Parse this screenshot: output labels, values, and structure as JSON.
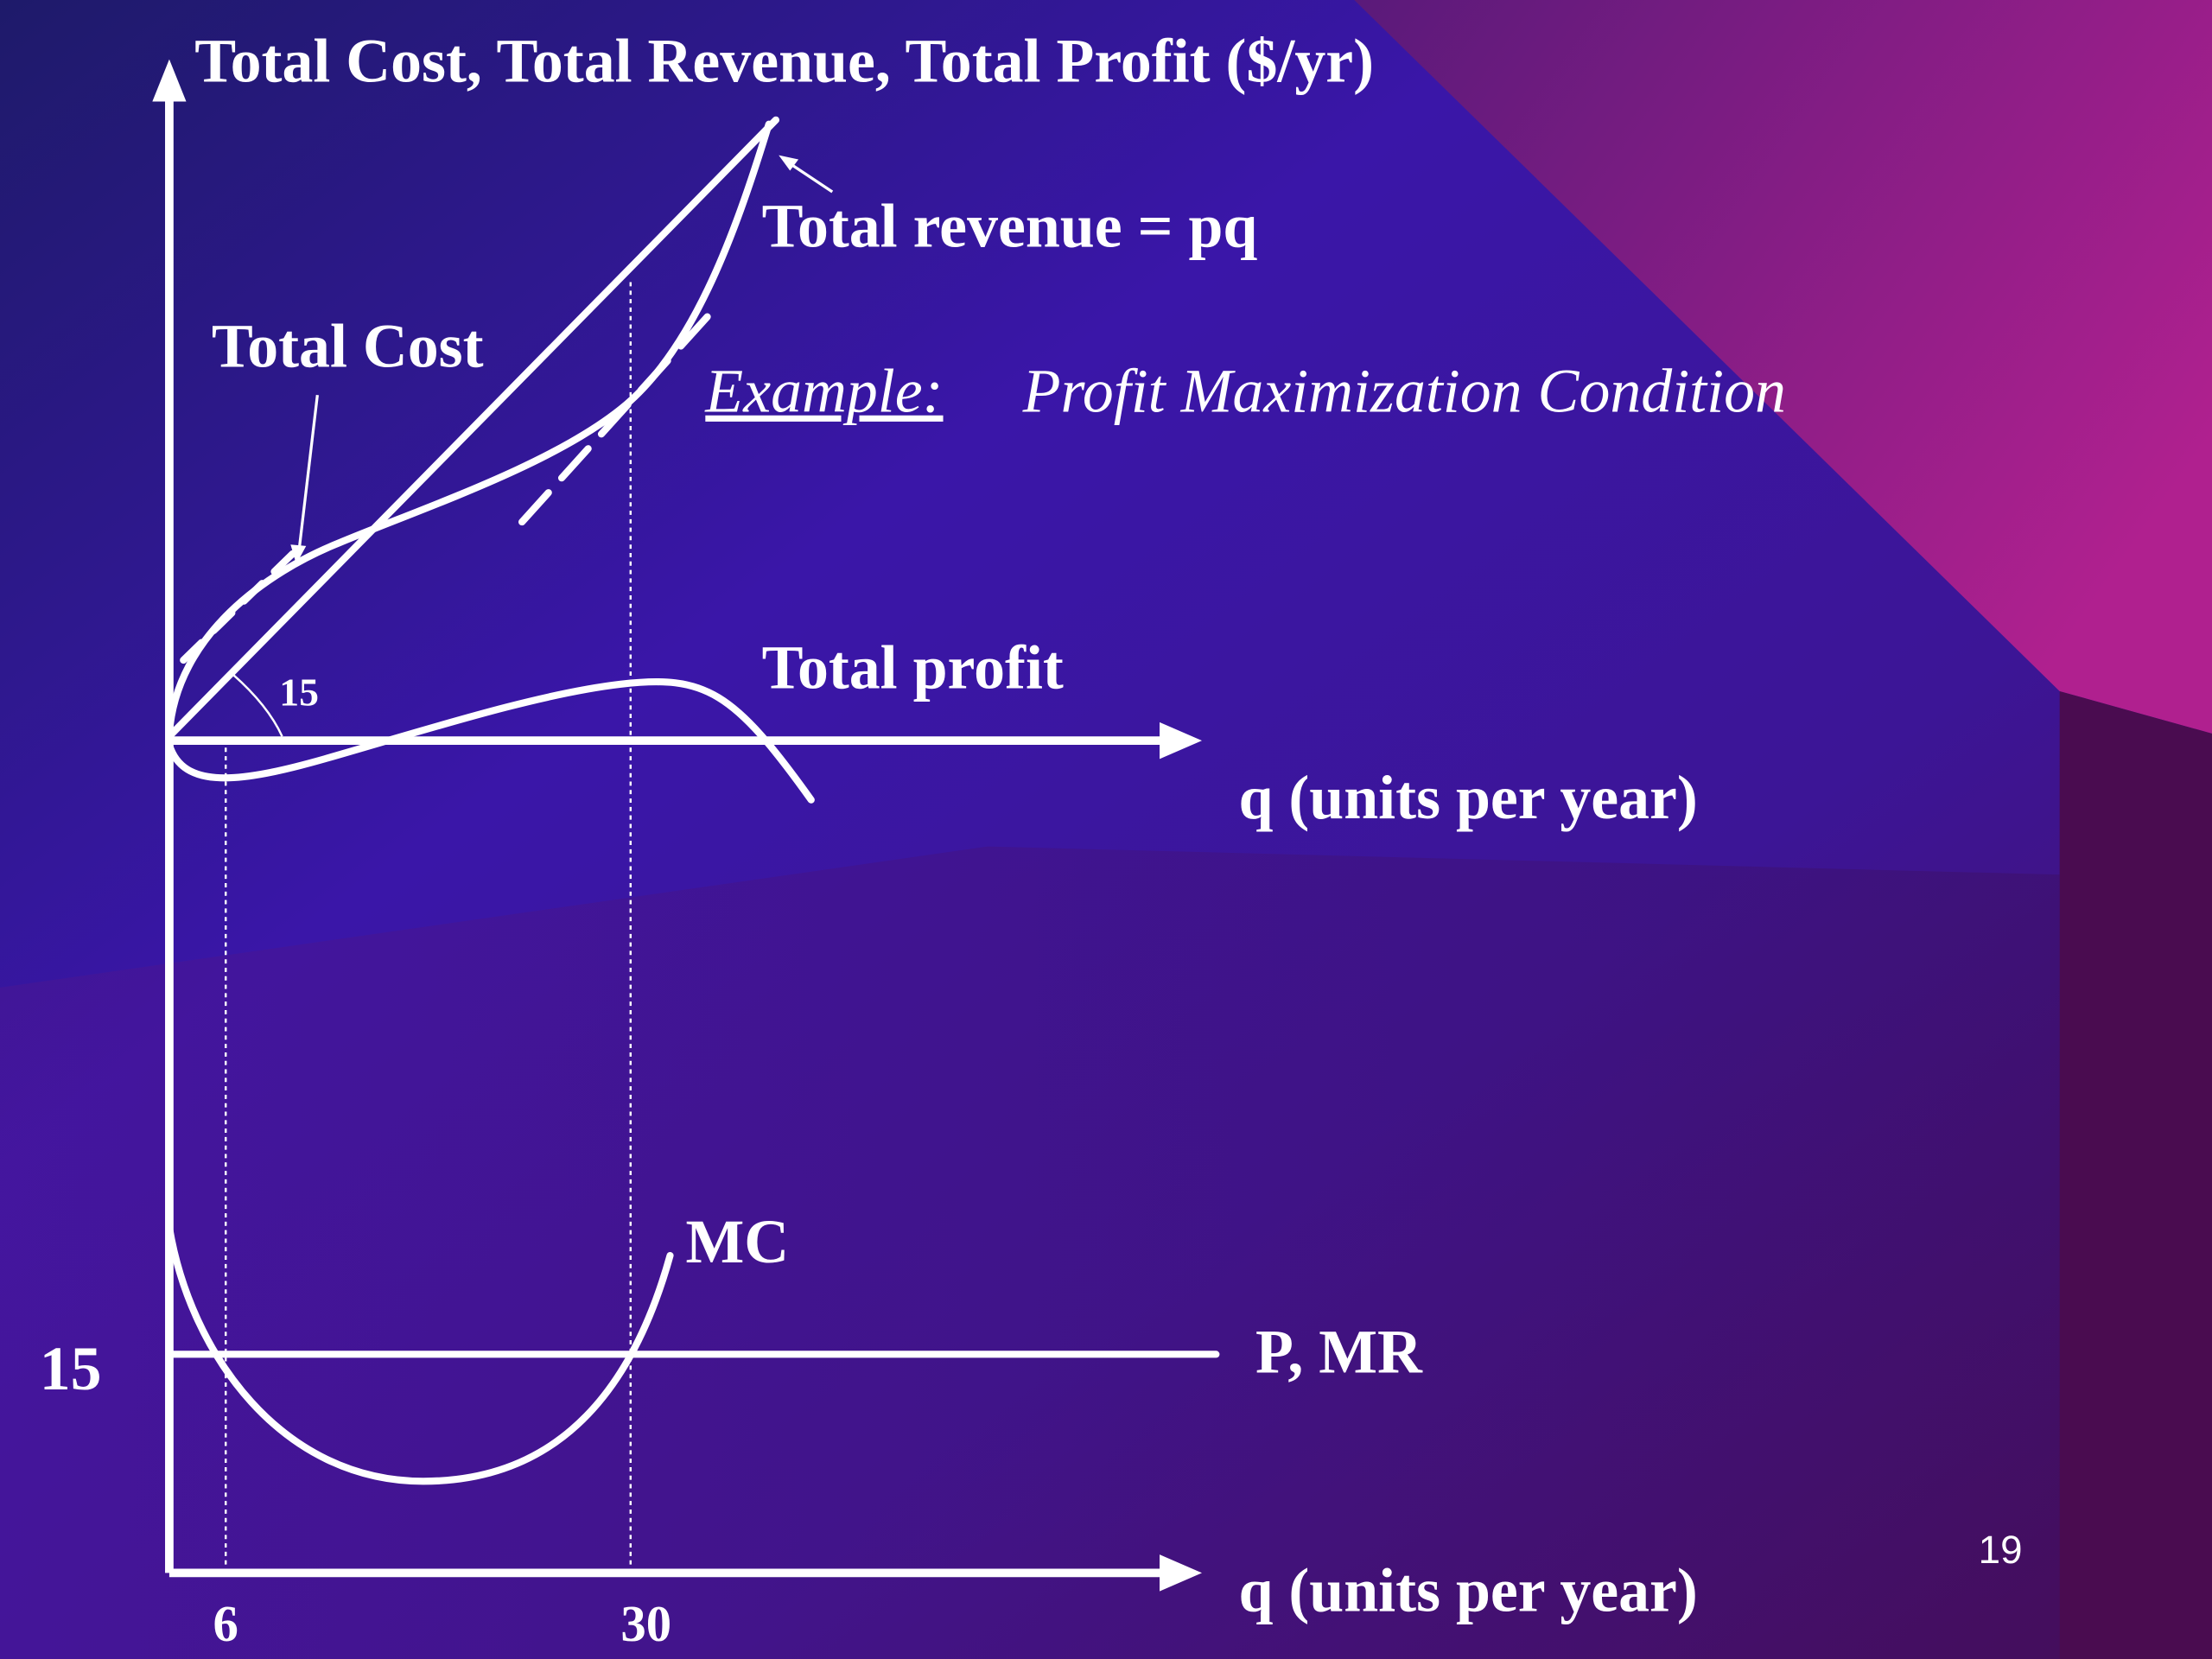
{
  "title": "Total Cost, Total Revenue, Total Profit ($/yr)",
  "labels": {
    "total_revenue": "Total revenue = pq",
    "total_cost": "Total Cost",
    "example_prefix": "Example:",
    "example_title": "Profit Maximization Condition",
    "total_profit": "Total profit",
    "slope": "15",
    "x_axis_upper": "q (units per year)",
    "mc": "MC",
    "p_mr": "P, MR",
    "price_tick": "15",
    "x_axis_lower": "q (units per year)",
    "q_tick_1": "6",
    "q_tick_2": "30"
  },
  "page_number": "19"
}
